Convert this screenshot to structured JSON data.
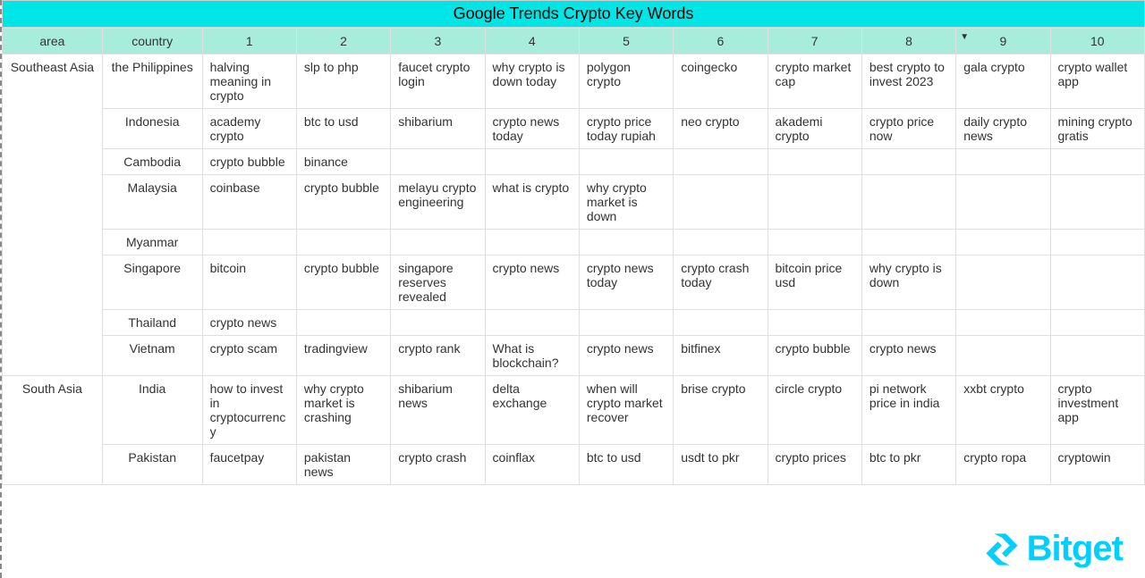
{
  "title": "Google Trends Crypto Key Words",
  "colors": {
    "title_bg": "#00e5e5",
    "header_bg": "#a8eddc",
    "border": "#e0e0e0",
    "text": "#333333",
    "logo": "#00cfff"
  },
  "columns": [
    "area",
    "country",
    "1",
    "2",
    "3",
    "4",
    "5",
    "6",
    "7",
    "8",
    "9",
    "10"
  ],
  "sorted_col_index": 10,
  "areas": [
    {
      "name": "Southeast Asia",
      "rows": [
        {
          "country": "the Philippines",
          "cells": [
            "halving meaning in crypto",
            "slp to php",
            "faucet crypto login",
            "why crypto is down today",
            "polygon crypto",
            "coingecko",
            "crypto market cap",
            "best crypto to invest 2023",
            "gala crypto",
            "crypto wallet app"
          ]
        },
        {
          "country": "Indonesia",
          "cells": [
            "academy crypto",
            "btc to usd",
            "shibarium",
            "crypto news today",
            "crypto price today rupiah",
            "neo crypto",
            "akademi crypto",
            "crypto price now",
            "daily crypto news",
            "mining crypto gratis"
          ]
        },
        {
          "country": "Cambodia",
          "cells": [
            "crypto bubble",
            "binance",
            "",
            "",
            "",
            "",
            "",
            "",
            "",
            ""
          ]
        },
        {
          "country": "Malaysia",
          "cells": [
            "coinbase",
            "crypto bubble",
            "melayu crypto engineering",
            "what is crypto",
            "why crypto market is down",
            "",
            "",
            "",
            "",
            ""
          ]
        },
        {
          "country": "Myanmar",
          "cells": [
            "",
            "",
            "",
            "",
            "",
            "",
            "",
            "",
            "",
            ""
          ]
        },
        {
          "country": "Singapore",
          "cells": [
            "bitcoin",
            "crypto bubble",
            "singapore reserves revealed",
            "crypto news",
            "crypto news today",
            "crypto crash today",
            "bitcoin price usd",
            "why crypto is down",
            "",
            ""
          ]
        },
        {
          "country": "Thailand",
          "cells": [
            "crypto news",
            "",
            "",
            "",
            "",
            "",
            "",
            "",
            "",
            ""
          ]
        },
        {
          "country": "Vietnam",
          "cells": [
            "crypto scam",
            "tradingview",
            "crypto rank",
            "What is blockchain?",
            "crypto news",
            "bitfinex",
            "crypto bubble",
            "crypto news",
            "",
            ""
          ]
        }
      ]
    },
    {
      "name": "South Asia",
      "rows": [
        {
          "country": "India",
          "cells": [
            "how to invest in cryptocurrency",
            "why crypto market is crashing",
            "shibarium news",
            "delta exchange",
            "when will crypto market recover",
            "brise crypto",
            "circle crypto",
            "pi network price in india",
            "xxbt crypto",
            "crypto investment app"
          ]
        },
        {
          "country": "Pakistan",
          "cells": [
            "faucetpay",
            "pakistan news",
            "crypto crash",
            "coinflax",
            "btc to usd",
            "usdt to pkr",
            "crypto prices",
            "btc to pkr",
            "crypto ropa",
            "cryptowin"
          ]
        }
      ]
    }
  ],
  "logo_text": "Bitget"
}
